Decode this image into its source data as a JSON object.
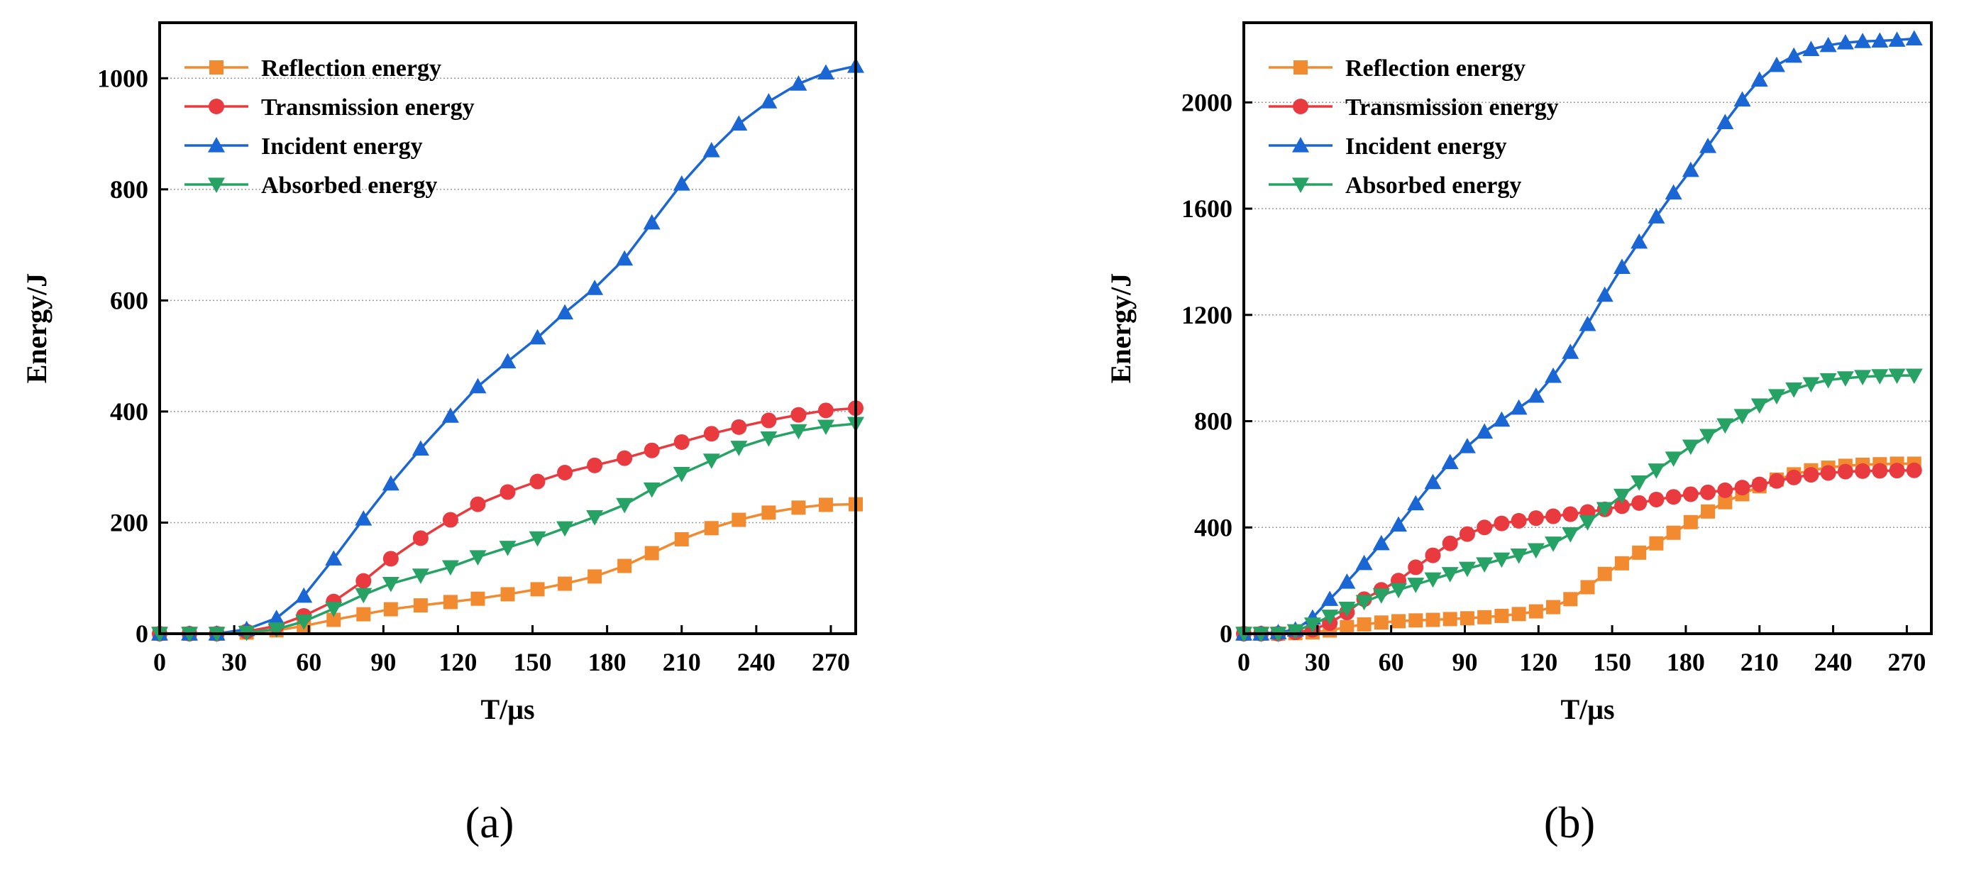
{
  "chart_data": [
    {
      "type": "line",
      "panel_label": "(a)",
      "xlabel": "T/μs",
      "ylabel": "Energy/J",
      "xlim": [
        0,
        280
      ],
      "ylim": [
        0,
        1100
      ],
      "xticks": [
        0,
        30,
        60,
        90,
        120,
        150,
        180,
        210,
        240,
        270
      ],
      "yticks": [
        0,
        200,
        400,
        600,
        800,
        1000
      ],
      "grid": "horizontal dotted",
      "legend_position": "top-left",
      "series": [
        {
          "name": "Reflection energy",
          "color": "#F28A30",
          "marker": "square",
          "x": [
            0,
            12,
            23,
            35,
            47,
            58,
            70,
            82,
            93,
            105,
            117,
            128,
            140,
            152,
            163,
            175,
            187,
            198,
            210,
            222,
            233,
            245,
            257,
            268,
            280
          ],
          "y": [
            0,
            0,
            0,
            2,
            6,
            14,
            25,
            35,
            44,
            51,
            57,
            63,
            71,
            80,
            90,
            103,
            122,
            145,
            170,
            190,
            205,
            218,
            227,
            232,
            233
          ]
        },
        {
          "name": "Transmission energy",
          "color": "#E83A3F",
          "marker": "circle",
          "x": [
            0,
            12,
            23,
            35,
            47,
            58,
            70,
            82,
            93,
            105,
            117,
            128,
            140,
            152,
            163,
            175,
            187,
            198,
            210,
            222,
            233,
            245,
            257,
            268,
            280
          ],
          "y": [
            0,
            0,
            0,
            4,
            14,
            32,
            58,
            95,
            135,
            172,
            205,
            233,
            255,
            274,
            290,
            303,
            316,
            330,
            345,
            360,
            372,
            384,
            394,
            402,
            406
          ]
        },
        {
          "name": "Incident energy",
          "color": "#1A66D4",
          "marker": "triangle-up",
          "x": [
            0,
            12,
            23,
            35,
            47,
            58,
            70,
            82,
            93,
            105,
            117,
            128,
            140,
            152,
            163,
            175,
            187,
            198,
            210,
            222,
            233,
            245,
            257,
            268,
            280
          ],
          "y": [
            0,
            0,
            0,
            8,
            28,
            68,
            135,
            207,
            270,
            333,
            392,
            445,
            490,
            533,
            578,
            622,
            675,
            740,
            810,
            870,
            918,
            958,
            990,
            1010,
            1022
          ]
        },
        {
          "name": "Absorbed energy",
          "color": "#25A264",
          "marker": "triangle-down",
          "x": [
            0,
            12,
            23,
            35,
            47,
            58,
            70,
            82,
            93,
            105,
            117,
            128,
            140,
            152,
            163,
            175,
            187,
            198,
            210,
            222,
            233,
            245,
            257,
            268,
            280
          ],
          "y": [
            0,
            0,
            0,
            2,
            8,
            22,
            45,
            70,
            90,
            105,
            120,
            138,
            155,
            172,
            190,
            210,
            232,
            260,
            288,
            312,
            335,
            352,
            365,
            373,
            378
          ]
        }
      ]
    },
    {
      "type": "line",
      "panel_label": "(b)",
      "xlabel": "T/μs",
      "ylabel": "Energy/J",
      "xlim": [
        0,
        280
      ],
      "ylim": [
        0,
        2300
      ],
      "xticks": [
        0,
        30,
        60,
        90,
        120,
        150,
        180,
        210,
        240,
        270
      ],
      "yticks": [
        0,
        400,
        800,
        1200,
        1600,
        2000
      ],
      "grid": "horizontal dotted",
      "legend_position": "top-left",
      "series": [
        {
          "name": "Reflection energy",
          "color": "#F28A30",
          "marker": "square",
          "x": [
            0,
            7,
            14,
            21,
            28,
            35,
            42,
            49,
            56,
            63,
            70,
            77,
            84,
            91,
            98,
            105,
            112,
            119,
            126,
            133,
            140,
            147,
            154,
            161,
            168,
            175,
            182,
            189,
            196,
            203,
            210,
            217,
            224,
            231,
            238,
            245,
            252,
            259,
            266,
            273
          ],
          "y": [
            0,
            0,
            0,
            2,
            5,
            12,
            25,
            35,
            42,
            47,
            50,
            52,
            55,
            58,
            62,
            67,
            74,
            84,
            100,
            130,
            175,
            225,
            265,
            305,
            340,
            380,
            420,
            460,
            495,
            525,
            555,
            580,
            600,
            615,
            625,
            632,
            636,
            638,
            640,
            640
          ]
        },
        {
          "name": "Transmission energy",
          "color": "#E83A3F",
          "marker": "circle",
          "x": [
            0,
            7,
            14,
            21,
            28,
            35,
            42,
            49,
            56,
            63,
            70,
            77,
            84,
            91,
            98,
            105,
            112,
            119,
            126,
            133,
            140,
            147,
            154,
            161,
            168,
            175,
            182,
            189,
            196,
            203,
            210,
            217,
            224,
            231,
            238,
            245,
            252,
            259,
            266,
            273
          ],
          "y": [
            0,
            0,
            0,
            5,
            15,
            40,
            80,
            130,
            165,
            200,
            250,
            295,
            340,
            375,
            400,
            415,
            425,
            435,
            442,
            450,
            458,
            468,
            480,
            492,
            505,
            515,
            525,
            532,
            540,
            550,
            562,
            575,
            588,
            598,
            605,
            610,
            612,
            613,
            614,
            615
          ]
        },
        {
          "name": "Incident energy",
          "color": "#1A66D4",
          "marker": "triangle-up",
          "x": [
            0,
            7,
            14,
            21,
            28,
            35,
            42,
            49,
            56,
            63,
            70,
            77,
            84,
            91,
            98,
            105,
            112,
            119,
            126,
            133,
            140,
            147,
            154,
            161,
            168,
            175,
            182,
            189,
            196,
            203,
            210,
            217,
            224,
            231,
            238,
            245,
            252,
            259,
            266,
            273
          ],
          "y": [
            0,
            0,
            5,
            15,
            60,
            130,
            195,
            265,
            340,
            410,
            490,
            570,
            645,
            705,
            760,
            805,
            850,
            895,
            970,
            1060,
            1165,
            1275,
            1380,
            1475,
            1570,
            1660,
            1745,
            1835,
            1925,
            2010,
            2085,
            2140,
            2175,
            2200,
            2215,
            2225,
            2230,
            2232,
            2235,
            2240
          ]
        },
        {
          "name": "Absorbed energy",
          "color": "#25A264",
          "marker": "triangle-down",
          "x": [
            0,
            7,
            14,
            21,
            28,
            35,
            42,
            49,
            56,
            63,
            70,
            77,
            84,
            91,
            98,
            105,
            112,
            119,
            126,
            133,
            140,
            147,
            154,
            161,
            168,
            175,
            182,
            189,
            196,
            203,
            210,
            217,
            224,
            231,
            238,
            245,
            252,
            259,
            266,
            273
          ],
          "y": [
            0,
            0,
            0,
            10,
            35,
            65,
            95,
            120,
            145,
            165,
            185,
            205,
            225,
            245,
            262,
            280,
            295,
            315,
            340,
            375,
            420,
            470,
            520,
            570,
            615,
            660,
            705,
            745,
            785,
            820,
            860,
            895,
            920,
            940,
            955,
            962,
            967,
            970,
            972,
            972
          ]
        }
      ]
    }
  ]
}
